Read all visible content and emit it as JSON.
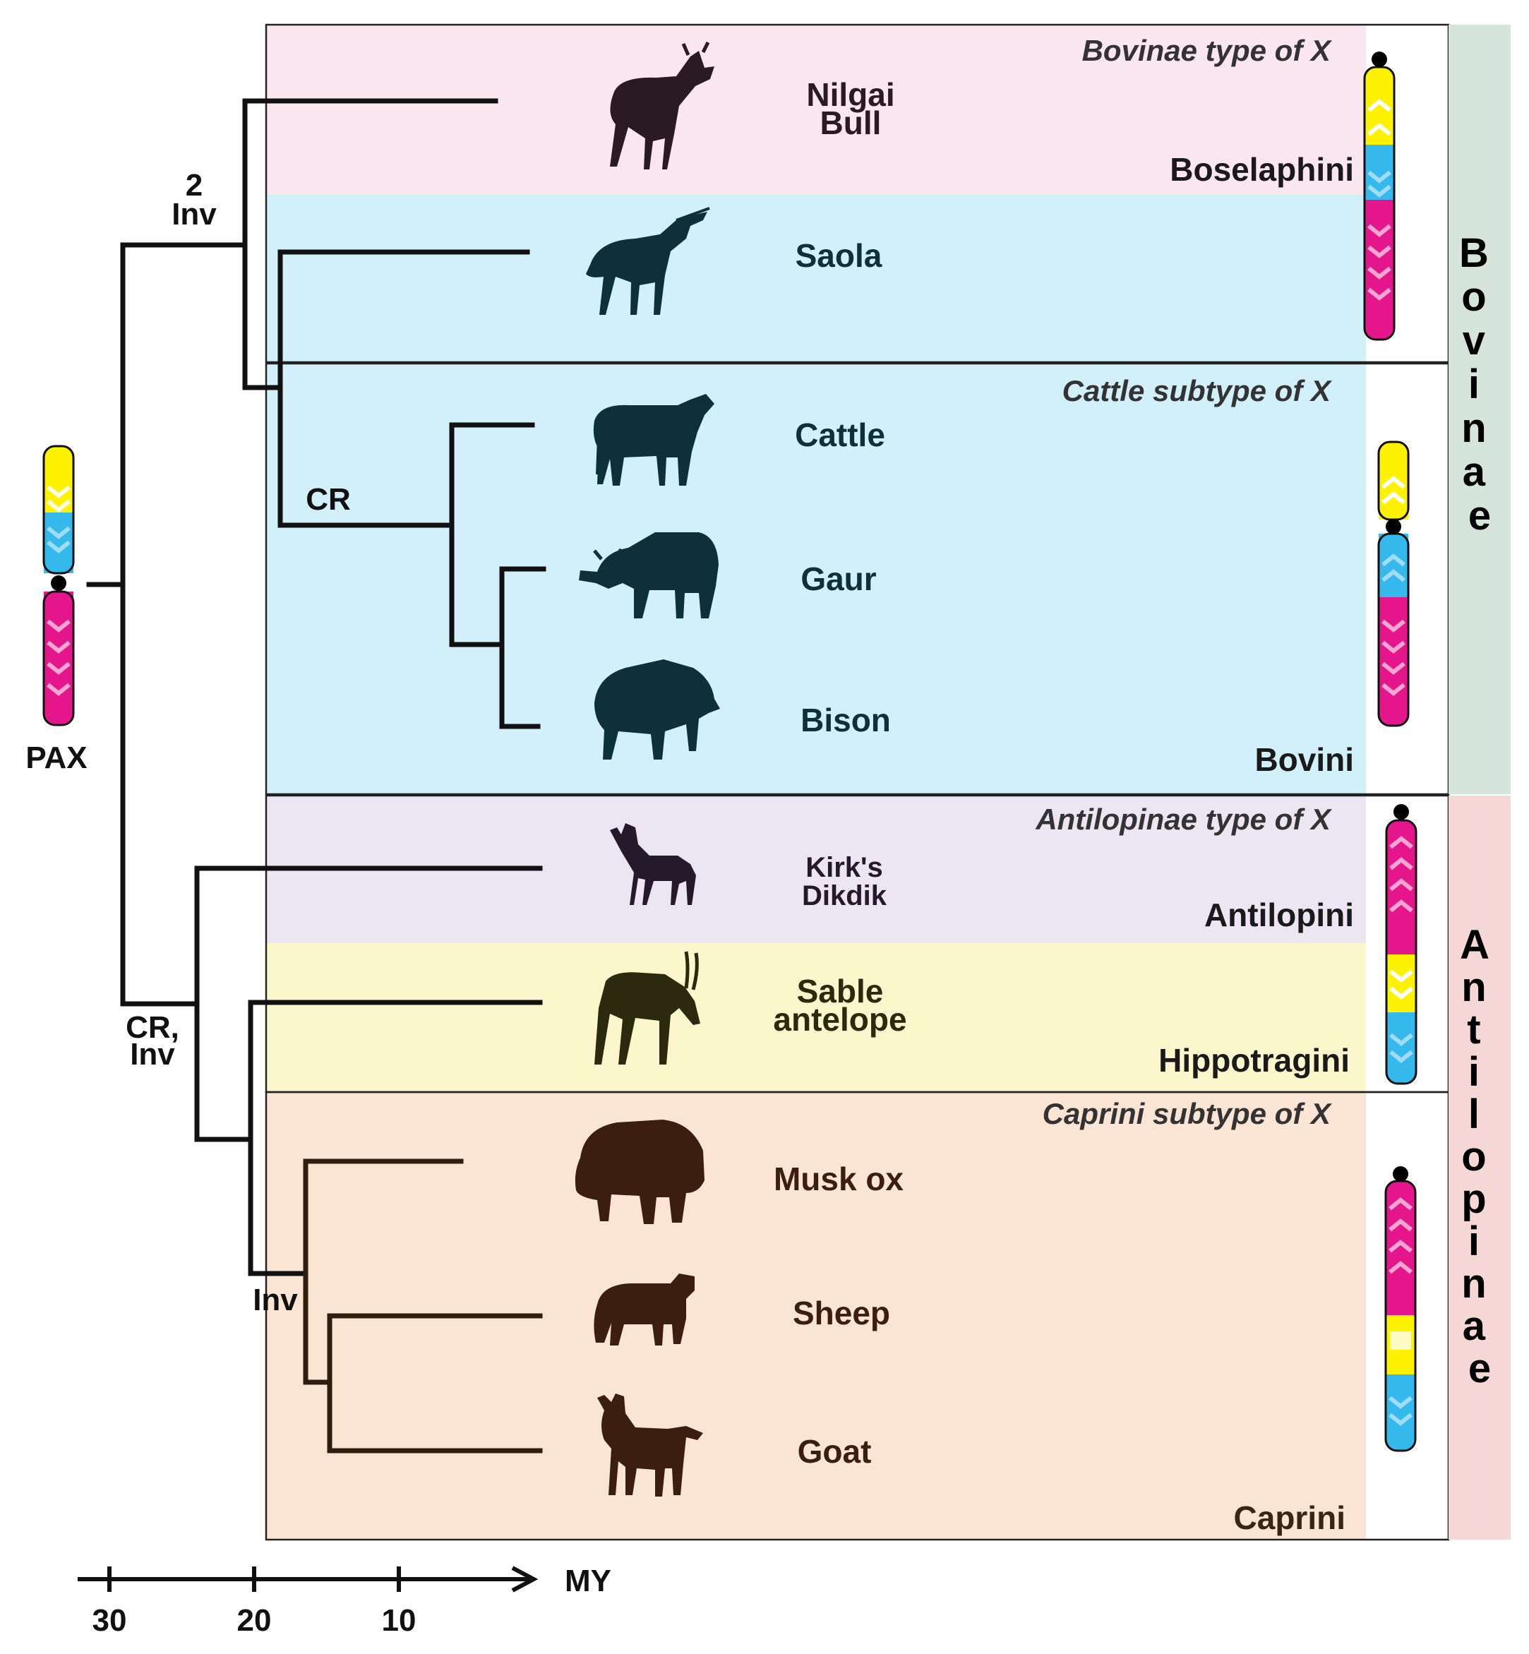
{
  "colors": {
    "boselaphini_bg": "#fae6ef",
    "bovini_bg": "#d1f0f9",
    "antilopini_bg": "#ebe6f2",
    "hippotragini_bg": "#fbf6cc",
    "caprini_bg": "#fae4d4",
    "bovinae_band": "#d6e5dc",
    "antilopinae_band": "#f5d8d6",
    "chrom_yellow": "#fff200",
    "chrom_blue": "#35b8ec",
    "chrom_magenta": "#e5168c",
    "bovid_silhouette": "#0f3038",
    "boselaphini_silhouette": "#2a1a24",
    "antilopini_silhouette": "#231a2c",
    "hippotragini_silhouette": "#2c2a0e",
    "caprini_silhouette": "#3c1e10"
  },
  "subfamilies": {
    "bovinae": "Bovinae",
    "antilopinae": "Antilopinae"
  },
  "tribes": {
    "boselaphini": "Boselaphini",
    "bovini": "Bovini",
    "antilopini": "Antilopini",
    "hippotragini": "Hippotragini",
    "caprini": "Caprini"
  },
  "x_types": {
    "bovinae": "Bovinae type of X",
    "cattle": "Cattle subtype of X",
    "antilopinae": "Antilopinae type of X",
    "caprini": "Caprini subtype of X"
  },
  "animals": {
    "nilgai_line1": "Nilgai",
    "nilgai_line2": "Bull",
    "saola": "Saola",
    "cattle": "Cattle",
    "gaur": "Gaur",
    "bison": "Bison",
    "dikdik_line1": "Kirk's",
    "dikdik_line2": "Dikdik",
    "sable_line1": "Sable",
    "sable_line2": "antelope",
    "musk_ox": "Musk ox",
    "sheep": "Sheep",
    "goat": "Goat"
  },
  "silhouettes": [
    "nilgai-bull-icon",
    "saola-icon",
    "cattle-icon",
    "gaur-icon",
    "bison-icon",
    "dikdik-icon",
    "sable-antelope-icon",
    "musk-ox-icon",
    "sheep-icon",
    "goat-icon"
  ],
  "events": {
    "bovinae_count": "2",
    "bovinae_inv": "Inv",
    "bovini_cr": "CR",
    "antilopinae_line1": "CR,",
    "antilopinae_line2": "Inv",
    "caprini_inv": "Inv"
  },
  "ancestor": "PAX",
  "axis": {
    "unit": "MY",
    "ticks": [
      "30",
      "20",
      "10"
    ],
    "tick_values": [
      30,
      20,
      10
    ]
  }
}
